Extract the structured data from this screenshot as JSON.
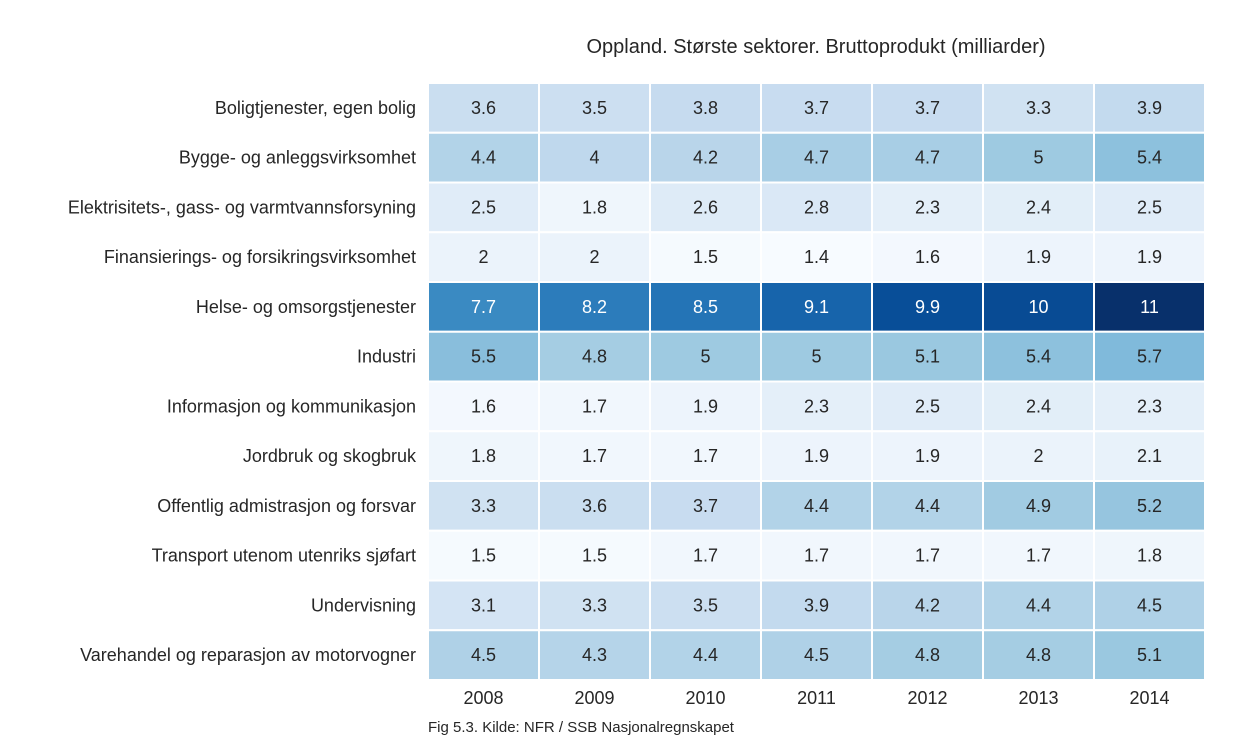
{
  "chart_data": {
    "type": "heatmap",
    "title": "Oppland. Største sektorer. Bruttoprodukt (milliarder)",
    "caption": "Fig 5.3. Kilde: NFR / SSB Nasjonalregnskapet",
    "x": [
      "2008",
      "2009",
      "2010",
      "2011",
      "2012",
      "2013",
      "2014"
    ],
    "y": [
      "Boligtjenester, egen bolig",
      "Bygge- og anleggsvirksomhet",
      "Elektrisitets-, gass- og varmtvannsforsyning",
      "Finansierings- og forsikringsvirksomhet",
      "Helse- og omsorgstjenester",
      "Industri",
      "Informasjon og kommunikasjon",
      "Jordbruk og skogbruk",
      "Offentlig admistrasjon og forsvar",
      "Transport utenom utenriks sjøfart",
      "Undervisning",
      "Varehandel og reparasjon av motorvogner"
    ],
    "values": [
      [
        3.6,
        3.5,
        3.8,
        3.7,
        3.7,
        3.3,
        3.9
      ],
      [
        4.4,
        4,
        4.2,
        4.7,
        4.7,
        5,
        5.4
      ],
      [
        2.5,
        1.8,
        2.6,
        2.8,
        2.3,
        2.4,
        2.5
      ],
      [
        2,
        2,
        1.5,
        1.4,
        1.6,
        1.9,
        1.9
      ],
      [
        7.7,
        8.2,
        8.5,
        9.1,
        9.9,
        10,
        11
      ],
      [
        5.5,
        4.8,
        5,
        5,
        5.1,
        5.4,
        5.7
      ],
      [
        1.6,
        1.7,
        1.9,
        2.3,
        2.5,
        2.4,
        2.3
      ],
      [
        1.8,
        1.7,
        1.7,
        1.9,
        1.9,
        2,
        2.1
      ],
      [
        3.3,
        3.6,
        3.7,
        4.4,
        4.4,
        4.9,
        5.2
      ],
      [
        1.5,
        1.5,
        1.7,
        1.7,
        1.7,
        1.7,
        1.8
      ],
      [
        3.1,
        3.3,
        3.5,
        3.9,
        4.2,
        4.4,
        4.5
      ],
      [
        4.5,
        4.3,
        4.4,
        4.5,
        4.8,
        4.8,
        5.1
      ]
    ],
    "colormap": "Blues",
    "color_range": [
      1.4,
      11
    ],
    "legend": "none"
  }
}
